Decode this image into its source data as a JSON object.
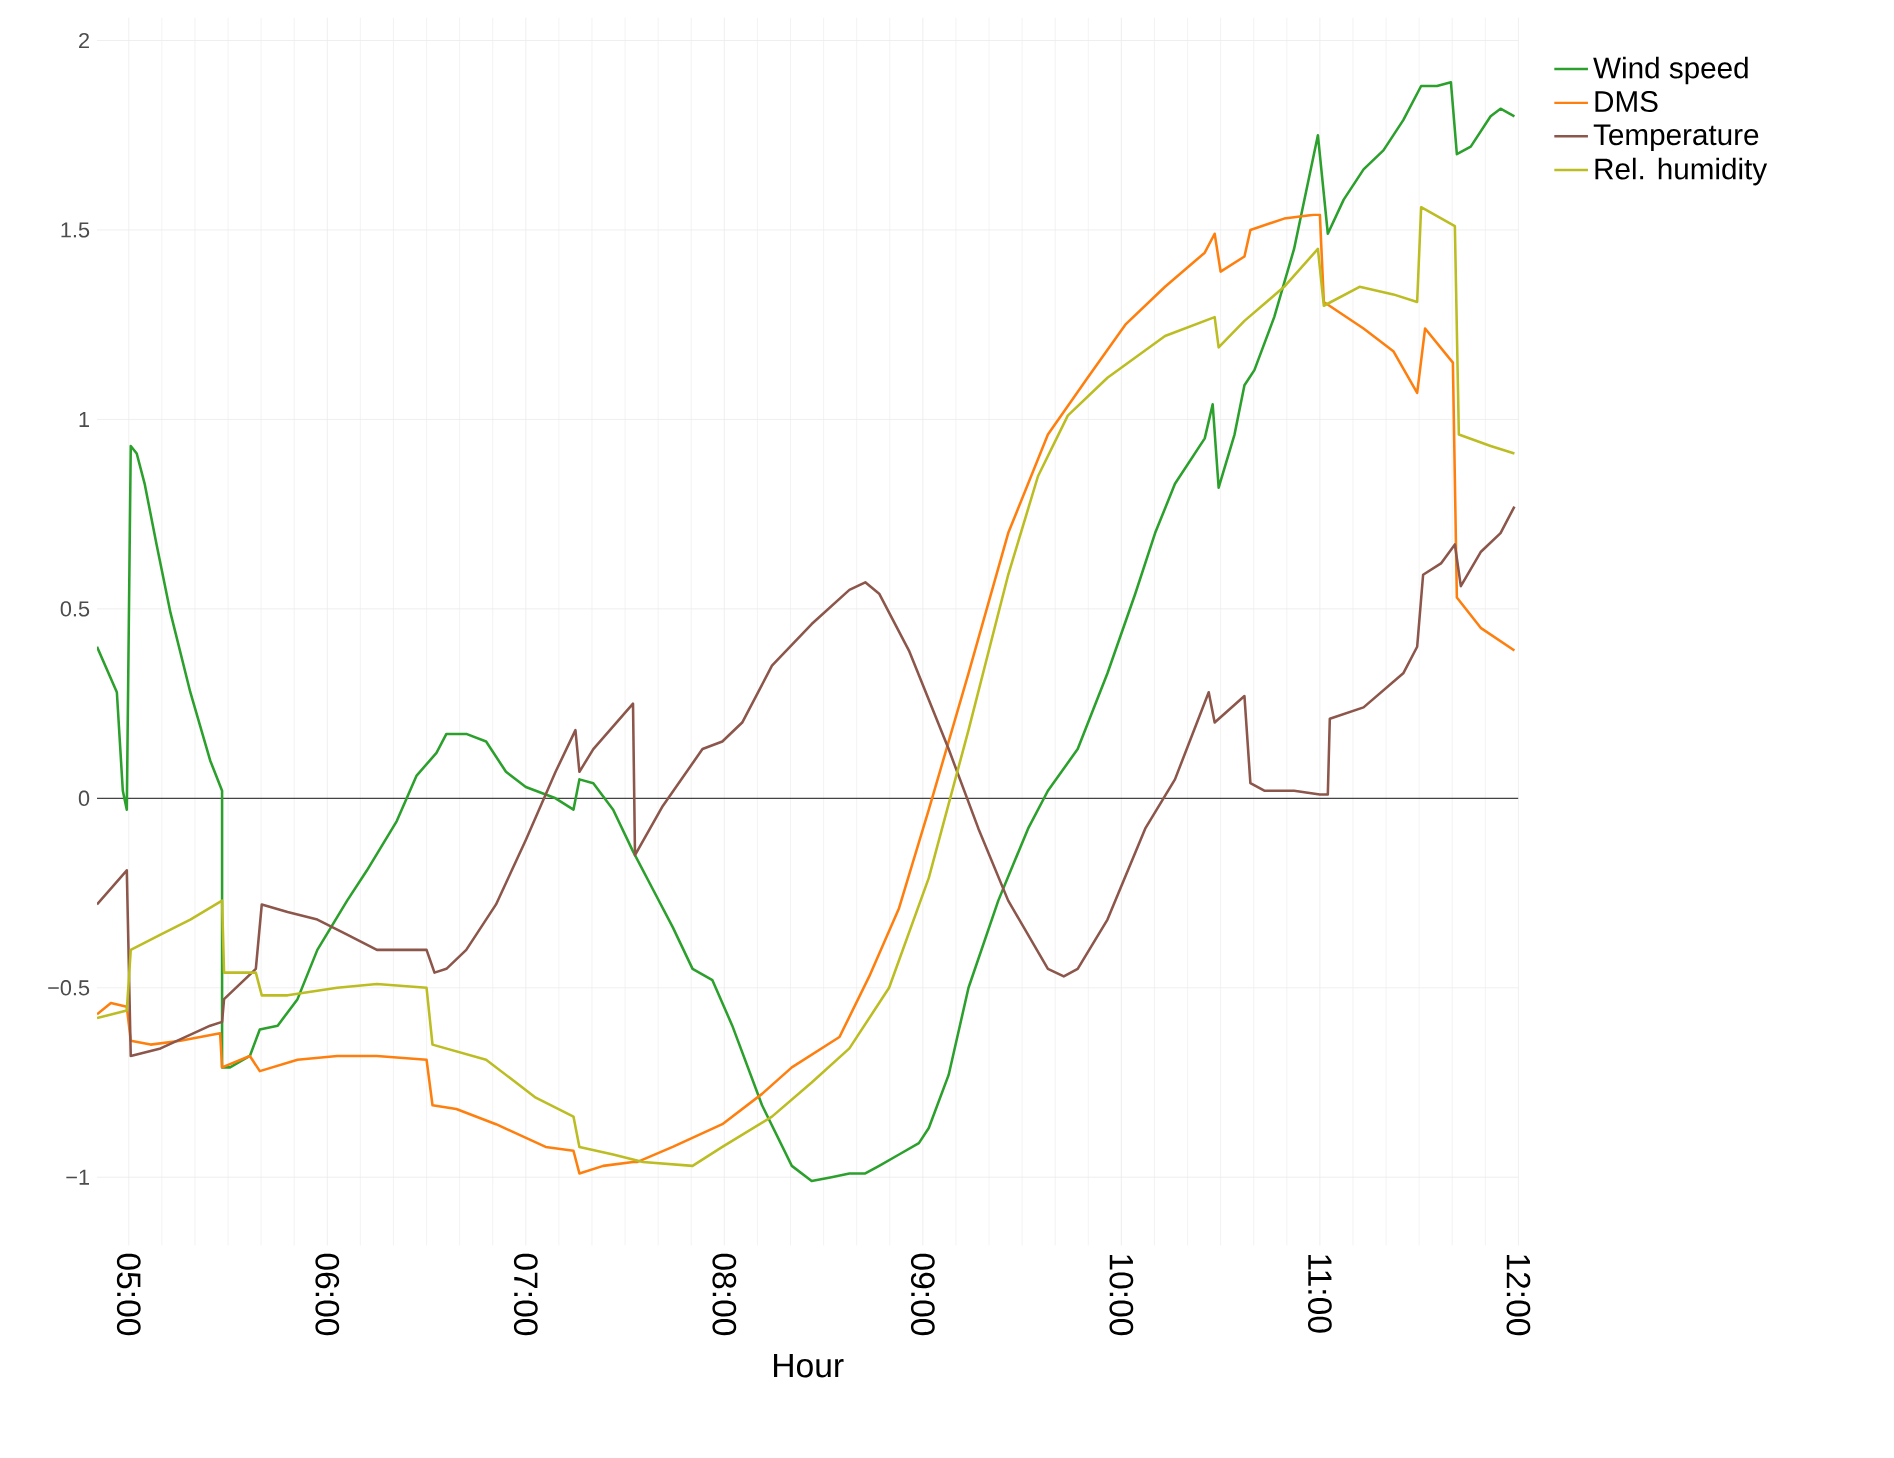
{
  "chart_data": {
    "type": "line",
    "xlabel": "Hour",
    "xlim": [
      4.84,
      12.0
    ],
    "ylim": [
      -1.18,
      2.06
    ],
    "xticks": [
      {
        "value": 5,
        "label": "05:00"
      },
      {
        "value": 6,
        "label": "06:00"
      },
      {
        "value": 7,
        "label": "07:00"
      },
      {
        "value": 8,
        "label": "08:00"
      },
      {
        "value": 9,
        "label": "09:00"
      },
      {
        "value": 10,
        "label": "10:00"
      },
      {
        "value": 11,
        "label": "11:00"
      },
      {
        "value": 12,
        "label": "12:00"
      }
    ],
    "yticks": [
      {
        "value": -1,
        "label": "−1"
      },
      {
        "value": -0.5,
        "label": "−0.5"
      },
      0,
      0.5,
      1,
      1.5,
      2
    ],
    "grid": true,
    "legend": "top right",
    "marker": "none",
    "line_style": "solid",
    "ref_lines": [
      {
        "axis": "y",
        "value": 0,
        "color": "#444444"
      }
    ],
    "series": [
      {
        "name": "Wind speed",
        "color": "#2ca02c",
        "x": [
          4.84,
          4.94,
          4.97,
          4.99,
          5.01,
          5.04,
          5.08,
          5.14,
          5.21,
          5.31,
          5.41,
          5.47,
          5.47,
          5.51,
          5.61,
          5.66,
          5.75,
          5.85,
          5.95,
          6.1,
          6.2,
          6.35,
          6.45,
          6.55,
          6.6,
          6.7,
          6.8,
          6.9,
          7.0,
          7.15,
          7.24,
          7.27,
          7.34,
          7.44,
          7.54,
          7.64,
          7.74,
          7.84,
          7.94,
          8.04,
          8.19,
          8.34,
          8.44,
          8.54,
          8.63,
          8.71,
          8.78,
          8.88,
          8.98,
          9.03,
          9.13,
          9.23,
          9.38,
          9.53,
          9.63,
          9.78,
          9.93,
          10.07,
          10.17,
          10.27,
          10.42,
          10.46,
          10.49,
          10.57,
          10.62,
          10.67,
          10.77,
          10.87,
          10.99,
          11.04,
          11.12,
          11.22,
          11.32,
          11.42,
          11.51,
          11.59,
          11.66,
          11.69,
          11.76,
          11.86,
          11.91,
          11.98
        ],
        "values": [
          0.4,
          0.28,
          0.02,
          -0.03,
          0.93,
          0.91,
          0.83,
          0.67,
          0.49,
          0.28,
          0.1,
          0.02,
          -0.71,
          -0.71,
          -0.68,
          -0.61,
          -0.6,
          -0.53,
          -0.4,
          -0.27,
          -0.19,
          -0.06,
          0.06,
          0.12,
          0.17,
          0.17,
          0.15,
          0.07,
          0.03,
          0.0,
          -0.03,
          0.05,
          0.04,
          -0.03,
          -0.14,
          -0.24,
          -0.34,
          -0.45,
          -0.48,
          -0.6,
          -0.81,
          -0.97,
          -1.01,
          -1.0,
          -0.99,
          -0.99,
          -0.97,
          -0.94,
          -0.91,
          -0.87,
          -0.73,
          -0.5,
          -0.27,
          -0.08,
          0.02,
          0.13,
          0.33,
          0.54,
          0.7,
          0.83,
          0.95,
          1.04,
          0.82,
          0.96,
          1.09,
          1.13,
          1.27,
          1.45,
          1.75,
          1.49,
          1.58,
          1.66,
          1.71,
          1.79,
          1.88,
          1.88,
          1.89,
          1.7,
          1.72,
          1.8,
          1.82,
          1.8
        ]
      },
      {
        "name": "DMS",
        "color": "#ff7f0e",
        "x": [
          4.84,
          4.91,
          4.99,
          5.01,
          5.11,
          5.26,
          5.46,
          5.47,
          5.61,
          5.66,
          5.85,
          6.05,
          6.25,
          6.5,
          6.53,
          6.65,
          6.85,
          7.1,
          7.24,
          7.27,
          7.39,
          7.54,
          7.56,
          7.74,
          7.99,
          8.19,
          8.34,
          8.58,
          8.73,
          8.88,
          9.03,
          9.23,
          9.43,
          9.63,
          9.83,
          10.02,
          10.22,
          10.42,
          10.47,
          10.5,
          10.62,
          10.65,
          10.82,
          10.97,
          11.0,
          11.02,
          11.22,
          11.37,
          11.49,
          11.53,
          11.67,
          11.69,
          11.81,
          11.98
        ],
        "values": [
          -0.57,
          -0.54,
          -0.55,
          -0.64,
          -0.65,
          -0.64,
          -0.62,
          -0.71,
          -0.68,
          -0.72,
          -0.69,
          -0.68,
          -0.68,
          -0.69,
          -0.81,
          -0.82,
          -0.86,
          -0.92,
          -0.93,
          -0.99,
          -0.97,
          -0.96,
          -0.96,
          -0.92,
          -0.86,
          -0.78,
          -0.71,
          -0.63,
          -0.47,
          -0.29,
          -0.03,
          0.33,
          0.7,
          0.96,
          1.11,
          1.25,
          1.35,
          1.44,
          1.49,
          1.39,
          1.43,
          1.5,
          1.53,
          1.54,
          1.54,
          1.31,
          1.24,
          1.18,
          1.07,
          1.24,
          1.15,
          0.53,
          0.45,
          0.39
        ]
      },
      {
        "name": "Temperature",
        "color": "#8c564b",
        "x": [
          4.84,
          4.99,
          5.01,
          5.16,
          5.41,
          5.47,
          5.48,
          5.64,
          5.67,
          5.8,
          5.95,
          6.1,
          6.25,
          6.5,
          6.54,
          6.6,
          6.7,
          6.85,
          7.0,
          7.15,
          7.25,
          7.27,
          7.34,
          7.54,
          7.55,
          7.69,
          7.89,
          7.99,
          8.09,
          8.24,
          8.44,
          8.63,
          8.71,
          8.78,
          8.93,
          9.13,
          9.28,
          9.43,
          9.63,
          9.71,
          9.78,
          9.93,
          10.12,
          10.27,
          10.44,
          10.47,
          10.62,
          10.65,
          10.72,
          10.87,
          11.0,
          11.04,
          11.05,
          11.22,
          11.42,
          11.49,
          11.52,
          11.61,
          11.68,
          11.71,
          11.81,
          11.91,
          11.98
        ],
        "values": [
          -0.28,
          -0.19,
          -0.68,
          -0.66,
          -0.6,
          -0.59,
          -0.53,
          -0.45,
          -0.28,
          -0.3,
          -0.32,
          -0.36,
          -0.4,
          -0.4,
          -0.46,
          -0.45,
          -0.4,
          -0.28,
          -0.11,
          0.07,
          0.18,
          0.07,
          0.13,
          0.25,
          -0.15,
          -0.02,
          0.13,
          0.15,
          0.2,
          0.35,
          0.46,
          0.55,
          0.57,
          0.54,
          0.39,
          0.13,
          -0.08,
          -0.27,
          -0.45,
          -0.47,
          -0.45,
          -0.32,
          -0.08,
          0.05,
          0.28,
          0.2,
          0.27,
          0.04,
          0.02,
          0.02,
          0.01,
          0.01,
          0.21,
          0.24,
          0.33,
          0.4,
          0.59,
          0.62,
          0.67,
          0.56,
          0.65,
          0.7,
          0.77
        ]
      },
      {
        "name": "Rel. humidity",
        "color": "#bcbd22",
        "x": [
          4.84,
          4.99,
          5.01,
          5.16,
          5.31,
          5.47,
          5.48,
          5.64,
          5.67,
          5.8,
          6.05,
          6.25,
          6.5,
          6.53,
          6.8,
          7.05,
          7.24,
          7.27,
          7.44,
          7.59,
          7.84,
          7.99,
          8.24,
          8.44,
          8.63,
          8.83,
          9.03,
          9.23,
          9.43,
          9.58,
          9.73,
          9.93,
          10.22,
          10.47,
          10.49,
          10.62,
          10.82,
          10.99,
          11.02,
          11.2,
          11.37,
          11.49,
          11.51,
          11.68,
          11.7,
          11.86,
          11.98
        ],
        "values": [
          -0.58,
          -0.56,
          -0.4,
          -0.36,
          -0.32,
          -0.27,
          -0.46,
          -0.46,
          -0.52,
          -0.52,
          -0.5,
          -0.49,
          -0.5,
          -0.65,
          -0.69,
          -0.79,
          -0.84,
          -0.92,
          -0.94,
          -0.96,
          -0.97,
          -0.92,
          -0.84,
          -0.75,
          -0.66,
          -0.5,
          -0.21,
          0.18,
          0.59,
          0.85,
          1.01,
          1.11,
          1.22,
          1.27,
          1.19,
          1.26,
          1.35,
          1.45,
          1.3,
          1.35,
          1.33,
          1.31,
          1.56,
          1.51,
          0.96,
          0.93,
          0.91
        ]
      }
    ]
  }
}
